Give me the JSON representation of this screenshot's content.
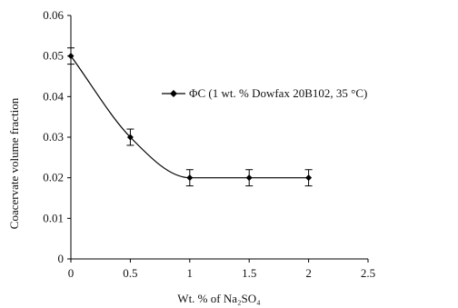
{
  "chart_data": {
    "type": "line",
    "title": "",
    "xlabel": "Wt. % of Na₂SO₄",
    "ylabel": "Coacervate volume fraction",
    "xlim": [
      0,
      2.5
    ],
    "ylim": [
      0,
      0.06
    ],
    "x_ticks": [
      "0",
      "0.5",
      "1",
      "1.5",
      "2",
      "2.5"
    ],
    "y_ticks": [
      "0",
      "0.01",
      "0.02",
      "0.03",
      "0.04",
      "0.05",
      "0.06"
    ],
    "grid": false,
    "legend_position": "right",
    "series": [
      {
        "name": "ΦC (1 wt. % Dowfax 20B102, 35 °C)",
        "x": [
          0,
          0.5,
          1,
          1.5,
          2
        ],
        "y": [
          0.05,
          0.03,
          0.02,
          0.02,
          0.02
        ],
        "error": [
          0.002,
          0.002,
          0.002,
          0.002,
          0.002
        ],
        "color": "#000000",
        "marker": "diamond",
        "smooth": true
      }
    ]
  }
}
